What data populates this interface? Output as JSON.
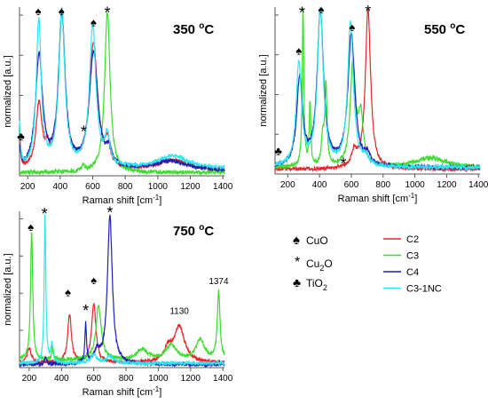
{
  "figure": {
    "legend": {
      "markers": [
        {
          "symbol": "♠",
          "label": "CuO"
        },
        {
          "symbol": "*",
          "label": "Cu2O"
        },
        {
          "symbol": "♣",
          "label": "TiO2"
        }
      ],
      "series": [
        {
          "name": "C2",
          "color": "#e8252b"
        },
        {
          "name": "C3",
          "color": "#3ddc2e"
        },
        {
          "name": "C4",
          "color": "#1f1fb4"
        },
        {
          "name": "C3-1NC",
          "color": "#2ee6f0"
        }
      ]
    }
  },
  "chart_data": [
    {
      "type": "line",
      "title": "350 °C",
      "xlabel": "Raman shift [cm-1]",
      "ylabel": "normalized [a.u.]",
      "xlim": [
        150,
        1410
      ],
      "ylim": [
        0,
        1.05
      ],
      "xticks": [
        200,
        400,
        600,
        800,
        1000,
        1200,
        1400
      ],
      "grid": false,
      "series": [
        {
          "name": "C2",
          "color": "#e8252b",
          "base": 0.03,
          "peaks": [
            [
              150,
              0.18,
              8
            ],
            [
              270,
              0.4,
              22
            ],
            [
              320,
              0.08,
              12
            ],
            [
              410,
              0.96,
              24
            ],
            [
              605,
              0.78,
              30
            ],
            [
              690,
              0.14,
              16
            ],
            [
              1100,
              0.06,
              120
            ]
          ]
        },
        {
          "name": "C3",
          "color": "#3ddc2e",
          "base": 0.02,
          "peaks": [
            [
              690,
              1.0,
              20
            ],
            [
              540,
              0.04,
              10
            ]
          ]
        },
        {
          "name": "C4",
          "color": "#1f1fb4",
          "base": 0.03,
          "peaks": [
            [
              150,
              0.12,
              8
            ],
            [
              270,
              0.7,
              26
            ],
            [
              410,
              0.96,
              24
            ],
            [
              605,
              0.72,
              32
            ],
            [
              700,
              0.1,
              20
            ],
            [
              1080,
              0.06,
              120
            ]
          ]
        },
        {
          "name": "C3-1NC",
          "color": "#2ee6f0",
          "base": 0.04,
          "peaks": [
            [
              150,
              0.26,
              7
            ],
            [
              268,
              0.92,
              18
            ],
            [
              410,
              0.97,
              22
            ],
            [
              600,
              0.88,
              24
            ],
            [
              690,
              0.18,
              18
            ],
            [
              1090,
              0.08,
              120
            ]
          ]
        }
      ],
      "annotations": [
        {
          "text": "♠",
          "x": 265,
          "y": 1.0
        },
        {
          "text": "♠",
          "x": 408,
          "y": 1.0
        },
        {
          "text": "♠",
          "x": 605,
          "y": 0.93
        },
        {
          "text": "*",
          "x": 690,
          "y": 1.03
        },
        {
          "text": "*",
          "x": 545,
          "y": 0.29
        },
        {
          "text": "♣",
          "x": 158,
          "y": 0.22
        }
      ]
    },
    {
      "type": "line",
      "title": "550 °C",
      "xlabel": "Raman shift [cm-1]",
      "ylabel": "normalized [a.u.]",
      "xlim": [
        120,
        1410
      ],
      "ylim": [
        0,
        1.05
      ],
      "xticks": [
        200,
        400,
        600,
        800,
        1000,
        1200,
        1400
      ],
      "grid": false,
      "series": [
        {
          "name": "C2",
          "color": "#e8252b",
          "base": 0.03,
          "peaks": [
            [
              705,
              1.0,
              20
            ],
            [
              620,
              0.1,
              20
            ]
          ]
        },
        {
          "name": "C3",
          "color": "#3ddc2e",
          "base": 0.04,
          "peaks": [
            [
              296,
              1.0,
              6
            ],
            [
              340,
              0.4,
              6
            ],
            [
              420,
              0.18,
              10
            ],
            [
              440,
              0.5,
              8
            ],
            [
              610,
              0.65,
              20
            ],
            [
              660,
              0.3,
              18
            ],
            [
              1100,
              0.06,
              120
            ]
          ]
        },
        {
          "name": "C4",
          "color": "#1f1fb4",
          "base": 0.04,
          "peaks": [
            [
              275,
              0.55,
              22
            ],
            [
              405,
              0.97,
              24
            ],
            [
              600,
              0.83,
              26
            ],
            [
              700,
              0.06,
              20
            ]
          ]
        },
        {
          "name": "C3-1NC",
          "color": "#2ee6f0",
          "base": 0.04,
          "peaks": [
            [
              270,
              0.65,
              20
            ],
            [
              405,
              0.98,
              22
            ],
            [
              595,
              0.9,
              22
            ],
            [
              690,
              0.05,
              20
            ]
          ]
        }
      ],
      "annotations": [
        {
          "text": "*",
          "x": 290,
          "y": 1.03
        },
        {
          "text": "♠",
          "x": 270,
          "y": 0.75
        },
        {
          "text": "♠",
          "x": 410,
          "y": 1.01
        },
        {
          "text": "♠",
          "x": 605,
          "y": 0.9
        },
        {
          "text": "*",
          "x": 705,
          "y": 1.04
        },
        {
          "text": "*",
          "x": 550,
          "y": 0.08
        },
        {
          "text": "♣",
          "x": 140,
          "y": 0.12
        }
      ]
    },
    {
      "type": "line",
      "title": "750 °C",
      "xlabel": "Raman shift [cm-1]",
      "ylabel": "normalized [a.u.]",
      "xlim": [
        140,
        1410
      ],
      "ylim": [
        0,
        1.05
      ],
      "xticks": [
        200,
        400,
        600,
        800,
        1000,
        1200,
        1400
      ],
      "grid": false,
      "series": [
        {
          "name": "C2",
          "color": "#e8252b",
          "base": 0.03,
          "peaks": [
            [
              200,
              0.1,
              15
            ],
            [
              450,
              0.32,
              14
            ],
            [
              600,
              0.4,
              16
            ],
            [
              1130,
              0.24,
              40
            ],
            [
              1060,
              0.08,
              30
            ]
          ]
        },
        {
          "name": "C3",
          "color": "#3ddc2e",
          "base": 0.05,
          "peaks": [
            [
              215,
              0.86,
              8
            ],
            [
              345,
              0.1,
              6
            ],
            [
              630,
              0.36,
              20
            ],
            [
              1374,
              0.46,
              10
            ],
            [
              1260,
              0.14,
              30
            ],
            [
              1080,
              0.1,
              40
            ],
            [
              900,
              0.07,
              40
            ]
          ]
        },
        {
          "name": "C4",
          "color": "#1f1fb4",
          "base": 0.02,
          "peaks": [
            [
              550,
              0.26,
              6
            ],
            [
              620,
              0.08,
              20
            ],
            [
              700,
              1.0,
              18
            ],
            [
              300,
              0.04,
              10
            ]
          ]
        },
        {
          "name": "C3-1NC",
          "color": "#2ee6f0",
          "base": 0.03,
          "peaks": [
            [
              298,
              1.0,
              6
            ],
            [
              340,
              0.12,
              8
            ],
            [
              600,
              0.06,
              20
            ],
            [
              700,
              0.04,
              30
            ]
          ]
        }
      ],
      "annotations": [
        {
          "text": "♠",
          "x": 210,
          "y": 0.92
        },
        {
          "text": "*",
          "x": 295,
          "y": 1.05
        },
        {
          "text": "♠",
          "x": 440,
          "y": 0.48
        },
        {
          "text": "*",
          "x": 550,
          "y": 0.4
        },
        {
          "text": "♠",
          "x": 600,
          "y": 0.56
        },
        {
          "text": "*",
          "x": 700,
          "y": 1.06
        },
        {
          "text": "1130",
          "x": 1130,
          "y": 0.36
        },
        {
          "text": "1374",
          "x": 1374,
          "y": 0.56
        }
      ]
    }
  ]
}
